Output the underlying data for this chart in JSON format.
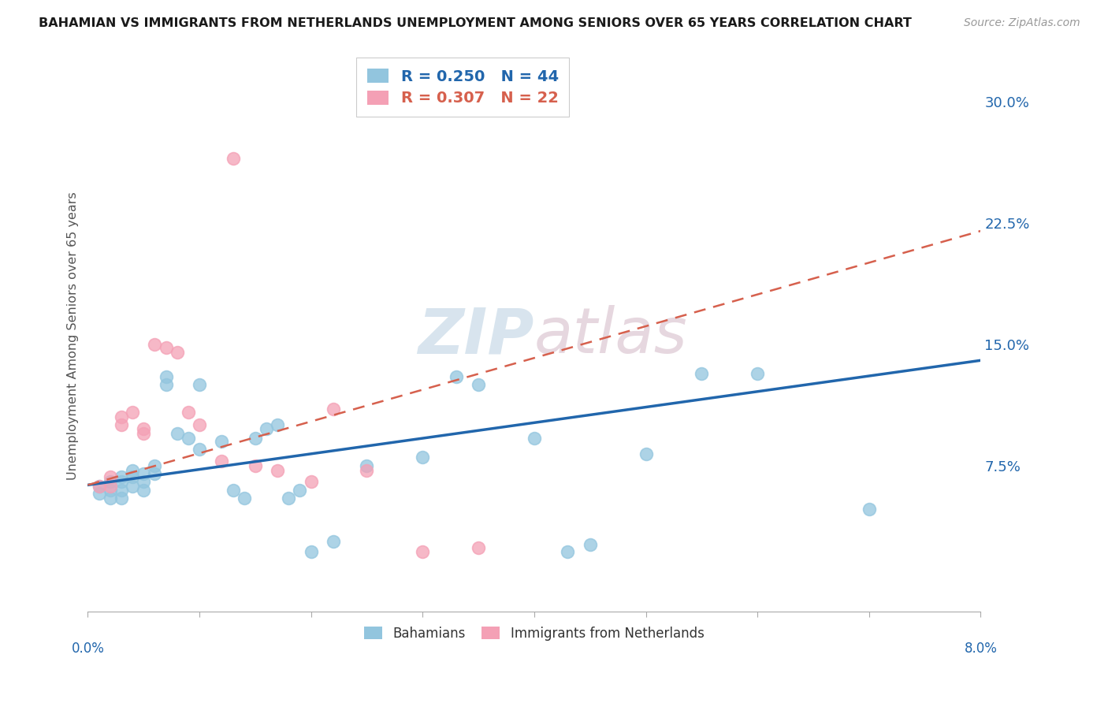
{
  "title": "BAHAMIAN VS IMMIGRANTS FROM NETHERLANDS UNEMPLOYMENT AMONG SENIORS OVER 65 YEARS CORRELATION CHART",
  "source": "Source: ZipAtlas.com",
  "ylabel": "Unemployment Among Seniors over 65 years",
  "y_tick_vals": [
    0.075,
    0.15,
    0.225,
    0.3
  ],
  "y_tick_labels": [
    "7.5%",
    "15.0%",
    "22.5%",
    "30.0%"
  ],
  "x_lim": [
    0.0,
    0.08
  ],
  "y_lim": [
    -0.015,
    0.325
  ],
  "legend_label1": "Bahamians",
  "legend_label2": "Immigrants from Netherlands",
  "color_blue": "#92c5de",
  "color_pink": "#f4a0b5",
  "line_blue": "#2166ac",
  "line_pink": "#d6604d",
  "watermark_color": "#d0e4f0",
  "grid_color": "#cccccc",
  "bahamian_x": [
    0.001,
    0.001,
    0.002,
    0.002,
    0.002,
    0.003,
    0.003,
    0.003,
    0.003,
    0.004,
    0.004,
    0.004,
    0.005,
    0.005,
    0.005,
    0.006,
    0.006,
    0.007,
    0.007,
    0.008,
    0.009,
    0.01,
    0.01,
    0.012,
    0.013,
    0.014,
    0.015,
    0.016,
    0.017,
    0.018,
    0.019,
    0.02,
    0.022,
    0.025,
    0.03,
    0.033,
    0.035,
    0.04,
    0.043,
    0.045,
    0.05,
    0.055,
    0.06,
    0.07
  ],
  "bahamian_y": [
    0.062,
    0.058,
    0.065,
    0.06,
    0.055,
    0.068,
    0.065,
    0.06,
    0.055,
    0.072,
    0.068,
    0.062,
    0.07,
    0.065,
    0.06,
    0.075,
    0.07,
    0.13,
    0.125,
    0.095,
    0.092,
    0.085,
    0.125,
    0.09,
    0.06,
    0.055,
    0.092,
    0.098,
    0.1,
    0.055,
    0.06,
    0.022,
    0.028,
    0.075,
    0.08,
    0.13,
    0.125,
    0.092,
    0.022,
    0.026,
    0.082,
    0.132,
    0.132,
    0.048
  ],
  "netherlands_x": [
    0.001,
    0.002,
    0.002,
    0.003,
    0.003,
    0.004,
    0.005,
    0.005,
    0.006,
    0.007,
    0.008,
    0.009,
    0.01,
    0.012,
    0.013,
    0.015,
    0.017,
    0.02,
    0.022,
    0.025,
    0.03,
    0.035
  ],
  "netherlands_y": [
    0.062,
    0.068,
    0.062,
    0.1,
    0.105,
    0.108,
    0.098,
    0.095,
    0.15,
    0.148,
    0.145,
    0.108,
    0.1,
    0.078,
    0.265,
    0.075,
    0.072,
    0.065,
    0.11,
    0.072,
    0.022,
    0.024
  ]
}
